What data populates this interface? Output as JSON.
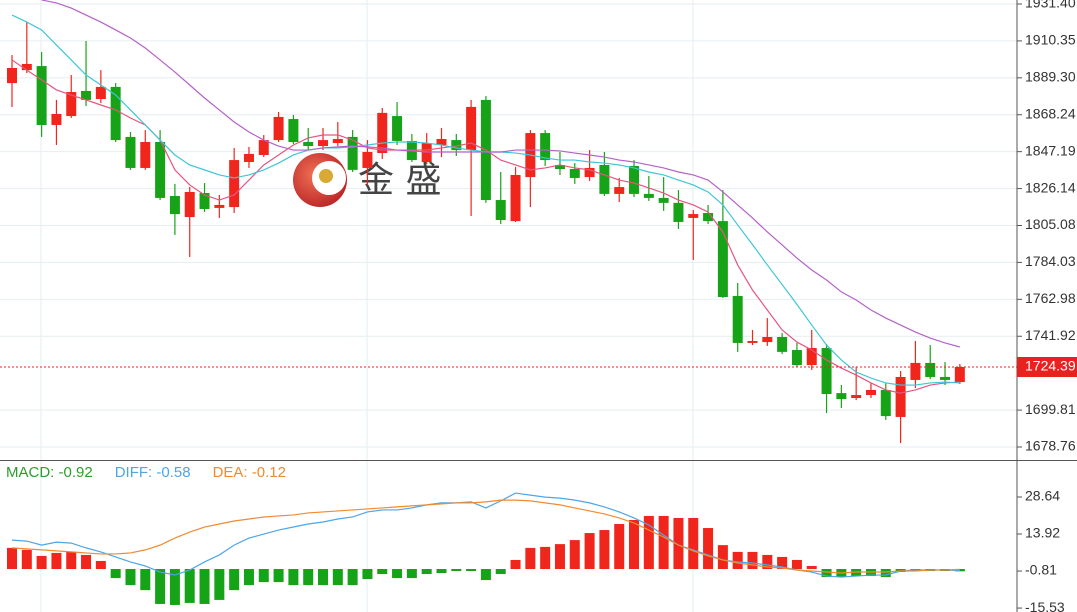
{
  "chart_data": [
    {
      "type": "candlestick",
      "open": [
        1886.3,
        1893.7,
        1896.0,
        1862.4,
        1867.5,
        1881.8,
        1877.2,
        1884.1,
        1855.6,
        1837.9,
        1852.7,
        1821.9,
        1809.9,
        1823.6,
        1815.1,
        1815.6,
        1841.3,
        1845.3,
        1853.8,
        1865.8,
        1852.7,
        1850.4,
        1852.1,
        1855.6,
        1837.9,
        1846.4,
        1867.5,
        1853.3,
        1841.3,
        1851.0,
        1853.8,
        1848.1,
        1876.7,
        1819.6,
        1807.6,
        1832.7,
        1857.8,
        1839.6,
        1837.3,
        1832.7,
        1839.6,
        1823.1,
        1839.0,
        1823.1,
        1820.8,
        1818.0,
        1809.4,
        1812.2,
        1807.6,
        1764.9,
        1738.1,
        1738.6,
        1741.5,
        1734.1,
        1725.5,
        1735.2,
        1709.5,
        1706.7,
        1708.4,
        1711.3,
        1695.9,
        1717.0,
        1726.7,
        1718.7,
        1715.8
      ],
      "high": [
        1902.3,
        1921.1,
        1904.0,
        1876.7,
        1890.9,
        1910.3,
        1893.7,
        1886.3,
        1858.4,
        1859.5,
        1859.5,
        1828.8,
        1827.0,
        1829.3,
        1822.5,
        1849.3,
        1849.9,
        1856.7,
        1869.8,
        1868.1,
        1860.7,
        1860.7,
        1864.1,
        1859.5,
        1853.8,
        1872.1,
        1875.5,
        1857.3,
        1857.8,
        1860.7,
        1857.3,
        1876.7,
        1878.9,
        1835.6,
        1838.5,
        1859.5,
        1859.5,
        1847.0,
        1840.7,
        1848.1,
        1847.0,
        1832.2,
        1842.4,
        1833.3,
        1832.7,
        1825.3,
        1813.9,
        1816.8,
        1825.3,
        1772.3,
        1745.5,
        1752.3,
        1743.8,
        1738.1,
        1745.5,
        1737.5,
        1714.1,
        1724.4,
        1715.3,
        1715.3,
        1722.1,
        1739.2,
        1736.9,
        1727.2,
        1726.1
      ],
      "low": [
        1872.7,
        1892.0,
        1855.6,
        1851.0,
        1866.4,
        1873.2,
        1874.9,
        1852.7,
        1836.8,
        1836.8,
        1819.6,
        1799.7,
        1787.1,
        1812.8,
        1809.4,
        1812.2,
        1837.9,
        1844.1,
        1852.7,
        1851.6,
        1848.1,
        1848.1,
        1850.4,
        1835.6,
        1828.2,
        1843.0,
        1851.0,
        1841.3,
        1840.2,
        1844.1,
        1844.7,
        1810.5,
        1818.0,
        1805.9,
        1807.1,
        1815.6,
        1839.0,
        1833.9,
        1828.8,
        1830.5,
        1821.9,
        1818.5,
        1821.3,
        1819.1,
        1813.4,
        1803.1,
        1785.4,
        1805.9,
        1763.7,
        1733.0,
        1736.9,
        1736.4,
        1731.8,
        1724.4,
        1722.7,
        1698.1,
        1701.0,
        1705.5,
        1706.7,
        1694.2,
        1681.0,
        1712.4,
        1717.5,
        1714.1,
        1714.7
      ],
      "close": [
        1894.9,
        1897.2,
        1862.4,
        1868.7,
        1881.2,
        1876.7,
        1884.1,
        1853.8,
        1837.9,
        1852.7,
        1820.8,
        1811.6,
        1824.2,
        1814.5,
        1816.8,
        1842.4,
        1845.9,
        1853.8,
        1867.0,
        1852.7,
        1850.4,
        1853.8,
        1854.4,
        1836.8,
        1847.0,
        1869.3,
        1853.3,
        1842.4,
        1852.1,
        1854.4,
        1848.1,
        1872.7,
        1819.6,
        1808.2,
        1833.9,
        1857.8,
        1842.4,
        1837.3,
        1832.2,
        1837.9,
        1823.1,
        1827.0,
        1823.1,
        1820.8,
        1818.0,
        1807.1,
        1811.6,
        1807.6,
        1764.3,
        1738.1,
        1739.2,
        1741.5,
        1733.0,
        1725.5,
        1735.2,
        1709.0,
        1706.1,
        1708.4,
        1711.3,
        1696.4,
        1718.7,
        1726.7,
        1718.7,
        1717.0,
        1724.39
      ],
      "up_color": "#f0261d",
      "down_color": "#17a317",
      "series": [
        {
          "color": "#e6557f",
          "values": [
            1899.5,
            1893.7,
            1888.1,
            1882.4,
            1879.5,
            1876.7,
            1873.8,
            1871.0,
            1866.4,
            1862.4,
            1853.8,
            1836.8,
            1828.2,
            1822.5,
            1819.6,
            1822.5,
            1831.0,
            1839.6,
            1845.3,
            1851.0,
            1855.0,
            1856.7,
            1856.7,
            1853.8,
            1849.3,
            1848.1,
            1848.1,
            1848.1,
            1848.1,
            1849.3,
            1850.4,
            1852.1,
            1848.1,
            1842.4,
            1839.6,
            1836.8,
            1837.9,
            1839.6,
            1837.9,
            1836.8,
            1833.9,
            1831.0,
            1829.3,
            1826.5,
            1823.6,
            1819.6,
            1816.8,
            1812.8,
            1801.4,
            1782.6,
            1768.3,
            1756.9,
            1745.5,
            1738.6,
            1734.1,
            1728.4,
            1723.8,
            1719.8,
            1715.3,
            1711.3,
            1709.5,
            1711.3,
            1714.1,
            1715.3,
            1715.8
          ]
        },
        {
          "color": "#3fc6d6",
          "values": [
            1925.1,
            1921.1,
            1916.6,
            1908.0,
            1899.5,
            1890.9,
            1885.2,
            1879.5,
            1871.0,
            1862.4,
            1853.8,
            1845.3,
            1839.6,
            1836.8,
            1833.9,
            1832.2,
            1833.9,
            1836.8,
            1840.7,
            1845.3,
            1848.1,
            1849.3,
            1849.3,
            1849.9,
            1851.0,
            1852.1,
            1852.7,
            1852.7,
            1852.1,
            1851.0,
            1849.3,
            1848.1,
            1847.0,
            1847.0,
            1846.4,
            1845.3,
            1843.6,
            1842.4,
            1842.4,
            1841.3,
            1840.7,
            1839.6,
            1837.9,
            1835.6,
            1833.9,
            1831.0,
            1828.2,
            1824.2,
            1816.8,
            1805.4,
            1794.2,
            1782.6,
            1771.4,
            1760.1,
            1748.3,
            1736.9,
            1728.4,
            1721.5,
            1718.1,
            1715.3,
            1714.1,
            1714.1,
            1715.3,
            1715.8,
            1715.3
          ]
        },
        {
          "color": "#b462c9",
          "values": [
            null,
            null,
            1933.7,
            1932.0,
            1929.1,
            1925.1,
            1921.1,
            1916.6,
            1912.0,
            1906.3,
            1899.5,
            1892.6,
            1885.2,
            1877.8,
            1871.0,
            1864.1,
            1858.4,
            1853.8,
            1850.4,
            1848.1,
            1848.1,
            1849.3,
            1849.9,
            1850.4,
            1849.9,
            1849.3,
            1848.1,
            1847.6,
            1847.0,
            1847.0,
            1847.0,
            1847.0,
            1847.0,
            1847.0,
            1848.1,
            1848.1,
            1848.1,
            1847.6,
            1846.4,
            1845.3,
            1844.1,
            1842.4,
            1841.3,
            1839.6,
            1837.9,
            1835.6,
            1833.9,
            1831.0,
            1824.2,
            1816.8,
            1809.4,
            1801.4,
            1794.0,
            1786.5,
            1779.7,
            1774.0,
            1767.2,
            1762.6,
            1756.9,
            1752.3,
            1748.3,
            1744.3,
            1740.9,
            1738.1,
            1735.8
          ]
        }
      ],
      "ylim": [
        1671.35,
        1933.68
      ],
      "yticks": [
        {
          "value": 1931.4,
          "label": "1931.40"
        },
        1910.35,
        {
          "value": 1889.3,
          "label": "1889.30"
        },
        1868.24,
        1847.19,
        1826.14,
        1805.08,
        1784.03,
        1762.98,
        1741.92,
        1699.81,
        1678.76
      ],
      "grid": true,
      "last_price": 1724.39,
      "last_price_color": "#e8231f",
      "watermark": "金 盛"
    },
    {
      "type": "macd",
      "up_color": "#f0261d",
      "down_color": "#17a317",
      "series": [
        {
          "name": "MACD: -0.92",
          "type": "bar",
          "color": "#2a9d2a",
          "values": [
            8.4,
            7.6,
            5.2,
            6.4,
            6.8,
            5.6,
            3.2,
            -3.6,
            -6.4,
            -8.4,
            -13.9,
            -14.3,
            -13.5,
            -13.9,
            -12.3,
            -8.4,
            -6.4,
            -5.2,
            -5.2,
            -6.4,
            -6.4,
            -6.4,
            -6.4,
            -6.4,
            -4.0,
            -2.0,
            -3.6,
            -3.6,
            -2.0,
            -1.6,
            -0.8,
            -0.8,
            -4.4,
            -2.0,
            3.6,
            8.4,
            8.8,
            9.9,
            11.5,
            14.3,
            15.5,
            17.9,
            19.5,
            21.1,
            21.1,
            20.3,
            20.3,
            16.3,
            9.5,
            6.8,
            6.8,
            5.6,
            4.8,
            3.6,
            1.2,
            -3.2,
            -3.2,
            -2.8,
            -2.8,
            -3.2,
            -1.2,
            -0.8,
            -0.8,
            -0.8,
            -0.92
          ]
        },
        {
          "name": "DIFF: -0.58",
          "type": "line",
          "color": "#4da6e8",
          "values": [
            11.5,
            11.1,
            9.5,
            10.7,
            10.3,
            8.4,
            6.8,
            4.8,
            2.8,
            1.2,
            -1.2,
            -2.4,
            -0.4,
            2.8,
            5.6,
            9.5,
            12.3,
            13.9,
            15.5,
            16.7,
            17.9,
            18.7,
            19.9,
            20.7,
            22.7,
            23.5,
            23.5,
            24.3,
            25.5,
            26.3,
            26.3,
            26.7,
            24.3,
            27.1,
            30.2,
            29.4,
            28.6,
            28.2,
            27.4,
            26.3,
            24.7,
            22.7,
            20.3,
            17.5,
            13.5,
            9.5,
            7.6,
            5.6,
            3.6,
            2.8,
            2.4,
            1.6,
            0.8,
            -0.4,
            -1.2,
            -2.8,
            -3.2,
            -2.8,
            -2.4,
            -2.4,
            -0.8,
            -0.4,
            -0.4,
            -0.4,
            -0.58
          ]
        },
        {
          "name": "DEA: -0.12",
          "type": "line",
          "color": "#f28a30",
          "values": [
            8.4,
            8.0,
            7.6,
            7.2,
            6.8,
            6.4,
            6.0,
            6.0,
            6.4,
            7.6,
            9.5,
            12.3,
            14.7,
            16.7,
            17.9,
            19.1,
            19.9,
            20.7,
            21.1,
            21.5,
            22.3,
            22.7,
            23.1,
            23.5,
            23.9,
            24.3,
            24.7,
            25.1,
            25.5,
            25.9,
            26.3,
            26.3,
            26.7,
            27.4,
            27.4,
            27.1,
            26.3,
            25.5,
            24.3,
            23.1,
            21.9,
            20.3,
            18.3,
            15.5,
            12.7,
            9.5,
            7.2,
            5.2,
            3.6,
            2.4,
            1.6,
            0.8,
            0.4,
            -0.4,
            -0.8,
            -1.2,
            -1.6,
            -1.2,
            -1.2,
            -1.2,
            -0.8,
            -0.8,
            -0.4,
            -0.4,
            -0.12
          ]
        }
      ],
      "ylim": [
        -17.1,
        43.36
      ],
      "yticks": [
        28.64,
        13.92,
        -0.81,
        -15.53
      ]
    }
  ]
}
